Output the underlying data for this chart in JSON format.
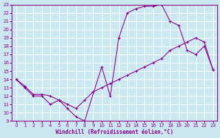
{
  "xlabel": "Windchill (Refroidissement éolien,°C)",
  "bg_color": "#cbe8f0",
  "grid_color": "#ffffff",
  "line_color": "#880088",
  "xlim": [
    -0.5,
    23.5
  ],
  "ylim": [
    9,
    23
  ],
  "yticks": [
    9,
    10,
    11,
    12,
    13,
    14,
    15,
    16,
    17,
    18,
    19,
    20,
    21,
    22,
    23
  ],
  "xticks": [
    0,
    1,
    2,
    3,
    4,
    5,
    6,
    7,
    8,
    9,
    10,
    11,
    12,
    13,
    14,
    15,
    16,
    17,
    18,
    19,
    20,
    21,
    22,
    23
  ],
  "curve1_x": [
    0,
    1,
    2,
    3,
    4,
    5,
    6,
    7,
    8,
    10,
    11,
    12,
    13,
    14,
    15,
    16,
    17,
    18,
    19,
    20,
    21,
    22,
    23
  ],
  "curve1_y": [
    14.0,
    13.0,
    12.0,
    12.0,
    11.0,
    11.5,
    10.5,
    9.5,
    9.0,
    15.5,
    12.0,
    19.0,
    22.0,
    22.5,
    22.8,
    22.8,
    23.0,
    21.0,
    20.5,
    17.5,
    17.0,
    18.0,
    15.2
  ],
  "curve2_x": [
    0,
    1,
    2,
    3,
    4,
    5,
    6,
    7,
    8,
    9,
    10,
    11,
    12,
    13,
    14,
    15,
    16,
    17,
    18,
    19,
    20,
    21,
    22,
    23
  ],
  "curve2_y": [
    14.0,
    13.2,
    12.2,
    12.2,
    12.0,
    11.5,
    11.0,
    10.5,
    11.5,
    12.5,
    13.0,
    13.5,
    14.0,
    14.5,
    15.0,
    15.5,
    16.0,
    16.5,
    17.5,
    18.0,
    18.5,
    19.0,
    18.5,
    15.2
  ]
}
